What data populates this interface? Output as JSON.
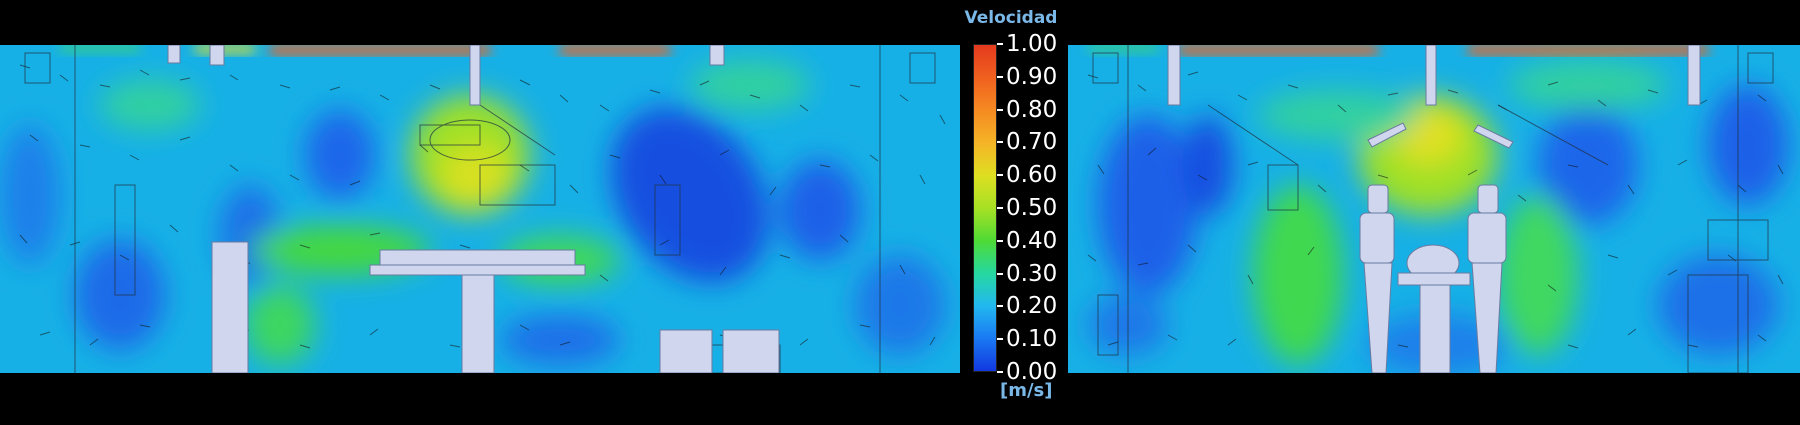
{
  "legend": {
    "title": "Velocidad",
    "unit": "[m/s]",
    "ticks": [
      "1.00",
      "0.90",
      "0.80",
      "0.70",
      "0.60",
      "0.50",
      "0.40",
      "0.30",
      "0.20",
      "0.10",
      "0.00"
    ],
    "colors": [
      "#e33a1e",
      "#f0601f",
      "#f58a22",
      "#f5b426",
      "#dedf22",
      "#a7e024",
      "#4fda35",
      "#26d8a0",
      "#22b8f0",
      "#1a79f2",
      "#1238e0"
    ]
  },
  "panels": [
    {
      "name": "left",
      "background": "#1ab2e8"
    },
    {
      "name": "right",
      "background": "#1ab2e8"
    }
  ]
}
